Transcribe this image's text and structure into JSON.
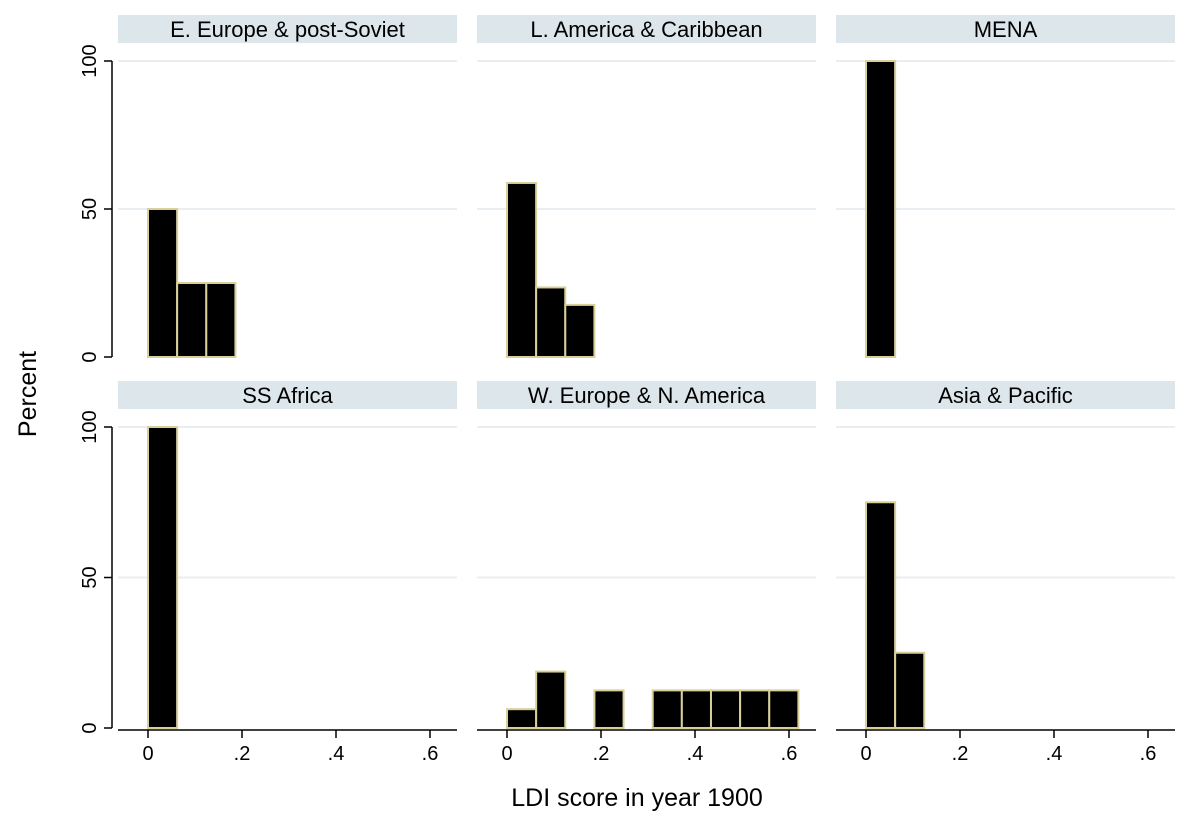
{
  "chart_data": {
    "type": "bar",
    "xlabel": "LDI score in year 1900",
    "ylabel": "Percent",
    "xlim": [
      0,
      0.62
    ],
    "ylim": [
      0,
      100
    ],
    "bin_width": 0.062,
    "x_ticks": [
      0,
      0.2,
      0.4,
      0.6
    ],
    "x_tick_labels": [
      "0",
      ".2",
      ".4",
      ".6"
    ],
    "y_ticks": [
      0,
      50,
      100
    ],
    "y_tick_labels": [
      "0",
      "50",
      "100"
    ],
    "grid": true,
    "colors": {
      "bar_fill": "#000000",
      "bar_edge": "#d8cf9a",
      "strip": "#dde6ea",
      "grid": "#e8eef1",
      "axis": "#000000"
    },
    "panels": [
      {
        "title": "E. Europe & post-Soviet",
        "bins": [
          {
            "x": 0.031,
            "value": 50
          },
          {
            "x": 0.093,
            "value": 25
          },
          {
            "x": 0.155,
            "value": 25
          }
        ]
      },
      {
        "title": "L. America & Caribbean",
        "bins": [
          {
            "x": 0.031,
            "value": 58.8
          },
          {
            "x": 0.093,
            "value": 23.5
          },
          {
            "x": 0.155,
            "value": 17.6
          }
        ]
      },
      {
        "title": "MENA",
        "bins": [
          {
            "x": 0.031,
            "value": 100
          }
        ]
      },
      {
        "title": "SS Africa",
        "bins": [
          {
            "x": 0.031,
            "value": 100
          }
        ]
      },
      {
        "title": "W. Europe & N. America",
        "bins": [
          {
            "x": 0.031,
            "value": 6.25
          },
          {
            "x": 0.093,
            "value": 18.75
          },
          {
            "x": 0.217,
            "value": 12.5
          },
          {
            "x": 0.341,
            "value": 12.5
          },
          {
            "x": 0.403,
            "value": 12.5
          },
          {
            "x": 0.465,
            "value": 12.5
          },
          {
            "x": 0.527,
            "value": 12.5
          },
          {
            "x": 0.589,
            "value": 12.5
          }
        ]
      },
      {
        "title": "Asia & Pacific",
        "bins": [
          {
            "x": 0.031,
            "value": 75
          },
          {
            "x": 0.093,
            "value": 25
          }
        ]
      }
    ]
  }
}
